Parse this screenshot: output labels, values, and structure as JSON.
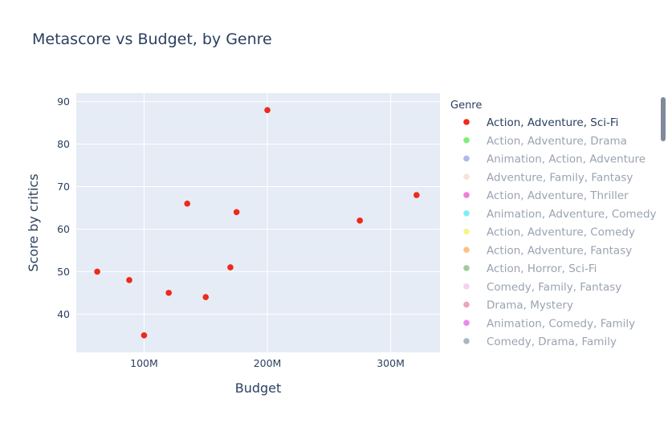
{
  "title": "Metascore vs Budget, by Genre",
  "chart_data": {
    "type": "scatter",
    "title": "Metascore vs Budget, by Genre",
    "xlabel": "Budget",
    "ylabel": "Score by critics",
    "xlim": [
      45000000,
      340000000
    ],
    "ylim": [
      31,
      92
    ],
    "xticks": [
      {
        "value": 100000000,
        "label": "100M"
      },
      {
        "value": 200000000,
        "label": "200M"
      },
      {
        "value": 300000000,
        "label": "300M"
      }
    ],
    "yticks": [
      {
        "value": 40,
        "label": "40"
      },
      {
        "value": 50,
        "label": "50"
      },
      {
        "value": 60,
        "label": "60"
      },
      {
        "value": 70,
        "label": "70"
      },
      {
        "value": 80,
        "label": "80"
      },
      {
        "value": 90,
        "label": "90"
      }
    ],
    "grid": true,
    "legend_title": "Genre",
    "legend_position": "right",
    "series": [
      {
        "name": "Action, Adventure, Sci-Fi",
        "color": "#ee2a1b",
        "active": true,
        "points": [
          {
            "x": 62000000,
            "y": 50
          },
          {
            "x": 88000000,
            "y": 48
          },
          {
            "x": 100000000,
            "y": 35
          },
          {
            "x": 120000000,
            "y": 45
          },
          {
            "x": 135000000,
            "y": 66
          },
          {
            "x": 150000000,
            "y": 44
          },
          {
            "x": 170000000,
            "y": 51
          },
          {
            "x": 175000000,
            "y": 64
          },
          {
            "x": 200000000,
            "y": 88
          },
          {
            "x": 275000000,
            "y": 62
          },
          {
            "x": 321000000,
            "y": 68
          }
        ]
      },
      {
        "name": "Action, Adventure, Drama",
        "color": "#7dee74",
        "active": false,
        "points": []
      },
      {
        "name": "Animation, Action, Adventure",
        "color": "#b0b7f2",
        "active": false,
        "points": []
      },
      {
        "name": "Adventure, Family, Fantasy",
        "color": "#fde0da",
        "active": false,
        "points": []
      },
      {
        "name": "Action, Adventure, Thriller",
        "color": "#f27fd3",
        "active": false,
        "points": []
      },
      {
        "name": "Animation, Adventure, Comedy",
        "color": "#7ff0f2",
        "active": false,
        "points": []
      },
      {
        "name": "Action, Adventure, Comedy",
        "color": "#f6f58b",
        "active": false,
        "points": []
      },
      {
        "name": "Action, Adventure, Fantasy",
        "color": "#fcc18a",
        "active": false,
        "points": []
      },
      {
        "name": "Action, Horror, Sci-Fi",
        "color": "#9fcc9d",
        "active": false,
        "points": []
      },
      {
        "name": "Comedy, Family, Fantasy",
        "color": "#f4d2f1",
        "active": false,
        "points": []
      },
      {
        "name": "Drama, Mystery",
        "color": "#eaa6b6",
        "active": false,
        "points": []
      },
      {
        "name": "Animation, Comedy, Family",
        "color": "#e88aee",
        "active": false,
        "points": []
      },
      {
        "name": "Comedy, Drama, Family",
        "color": "#aab7c0",
        "active": false,
        "points": []
      }
    ]
  }
}
